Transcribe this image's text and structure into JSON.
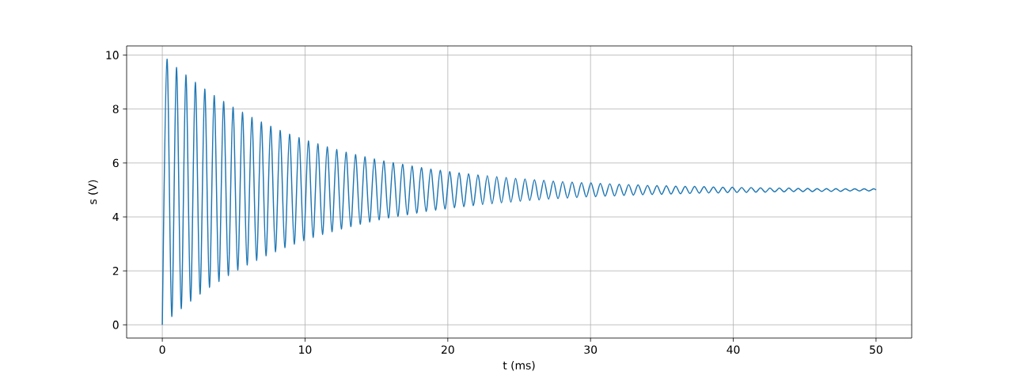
{
  "chart_data": {
    "type": "line",
    "xlabel": "t (ms)",
    "ylabel": "s (V)",
    "xlim": [
      -2.5,
      52.5
    ],
    "ylim": [
      -0.49,
      10.34
    ],
    "xticks": [
      0,
      10,
      20,
      30,
      40,
      50
    ],
    "yticks": [
      0,
      2,
      4,
      6,
      8,
      10
    ],
    "grid": true,
    "marker": "none",
    "line_style": "solid",
    "series": [
      {
        "color": "#1f77b4",
        "x": [
          0,
          0.33,
          0.66,
          0.99,
          1.32,
          1.65,
          1.98,
          2.31,
          2.64,
          2.97,
          3.3,
          3.63,
          3.96,
          4.29,
          4.62,
          4.95,
          5.28,
          5.61,
          5.94,
          6.27,
          6.6,
          6.93,
          7.26,
          7.59,
          7.92,
          8.25,
          8.58,
          8.91,
          9.24,
          9.57,
          9.9,
          10.23,
          10.56,
          10.89,
          11.22,
          11.55,
          11.88,
          12.21,
          12.54,
          12.87,
          13.2,
          13.53,
          13.86,
          14.19,
          14.52,
          14.85,
          15.18,
          15.51,
          15.84,
          16.17,
          16.5,
          16.83,
          17.16,
          17.49,
          17.82,
          18.15,
          18.48,
          18.81,
          19.14,
          19.47,
          19.8,
          20.13,
          20.46,
          20.79,
          21.12,
          21.45,
          21.78,
          22.11,
          22.44,
          22.77,
          23.1,
          23.43,
          23.76,
          24.09,
          24.42,
          24.75,
          25.08,
          25.41,
          25.74,
          26.07,
          26.4,
          26.73,
          27.06,
          27.39,
          27.72,
          28.05,
          28.38,
          28.71,
          29.04,
          29.37,
          29.7,
          30.03,
          30.36,
          30.69,
          31.02,
          31.35,
          31.68,
          32.01,
          32.34,
          32.67,
          33,
          33.33,
          33.66,
          33.99,
          34.32,
          34.65,
          34.98,
          35.31,
          35.64,
          35.97,
          36.3,
          36.63,
          36.96,
          37.29,
          37.62,
          37.95,
          38.28,
          38.61,
          38.94,
          39.27,
          39.6,
          39.93,
          40.26,
          40.59,
          40.92,
          41.25,
          41.58,
          41.91,
          42.24,
          42.57,
          42.9,
          43.23,
          43.56,
          43.89,
          44.22,
          44.55,
          44.88,
          45.21,
          45.54,
          45.87,
          46.2,
          46.53,
          46.86,
          47.19,
          47.52,
          47.85,
          48.18,
          48.51,
          48.84,
          49.17,
          49.5,
          49.83,
          50
        ],
        "values": [
          0,
          9.85,
          0.31,
          9.54,
          0.6,
          9.26,
          0.88,
          8.99,
          1.14,
          8.74,
          1.39,
          8.5,
          1.61,
          8.28,
          1.83,
          8.07,
          2.03,
          7.88,
          2.22,
          7.69,
          2.39,
          7.52,
          2.56,
          7.36,
          2.71,
          7.21,
          2.86,
          7.07,
          2.99,
          6.94,
          3.12,
          6.82,
          3.24,
          6.71,
          3.35,
          6.6,
          3.45,
          6.5,
          3.55,
          6.4,
          3.64,
          6.31,
          3.73,
          6.23,
          3.81,
          6.15,
          3.89,
          6.08,
          3.96,
          6.01,
          4.02,
          5.95,
          4.08,
          5.89,
          4.14,
          5.83,
          4.2,
          5.78,
          4.25,
          5.73,
          4.29,
          5.68,
          4.34,
          5.64,
          4.38,
          5.6,
          4.42,
          5.56,
          4.46,
          5.53,
          4.49,
          5.49,
          4.52,
          5.46,
          4.55,
          5.43,
          4.58,
          5.41,
          4.61,
          5.38,
          4.63,
          5.36,
          4.66,
          5.33,
          4.68,
          5.31,
          4.7,
          5.29,
          4.72,
          5.27,
          4.74,
          5.26,
          4.75,
          5.24,
          4.77,
          5.23,
          4.78,
          5.21,
          4.8,
          5.2,
          4.81,
          5.19,
          4.82,
          5.17,
          4.83,
          5.16,
          4.84,
          5.15,
          4.85,
          5.14,
          4.86,
          5.13,
          4.87,
          5.13,
          4.88,
          5.12,
          4.89,
          5.11,
          4.89,
          5.1,
          4.9,
          5.1,
          4.91,
          5.09,
          4.91,
          5.09,
          4.92,
          5.08,
          4.92,
          5.07,
          4.93,
          5.07,
          4.93,
          5.07,
          4.94,
          5.06,
          4.94,
          5.06,
          4.94,
          5.05,
          4.95,
          5.05,
          4.95,
          5.05,
          4.95,
          5.04,
          4.96,
          5.04,
          4.96,
          5.04,
          4.96,
          5.04,
          5.0
        ]
      }
    ]
  }
}
